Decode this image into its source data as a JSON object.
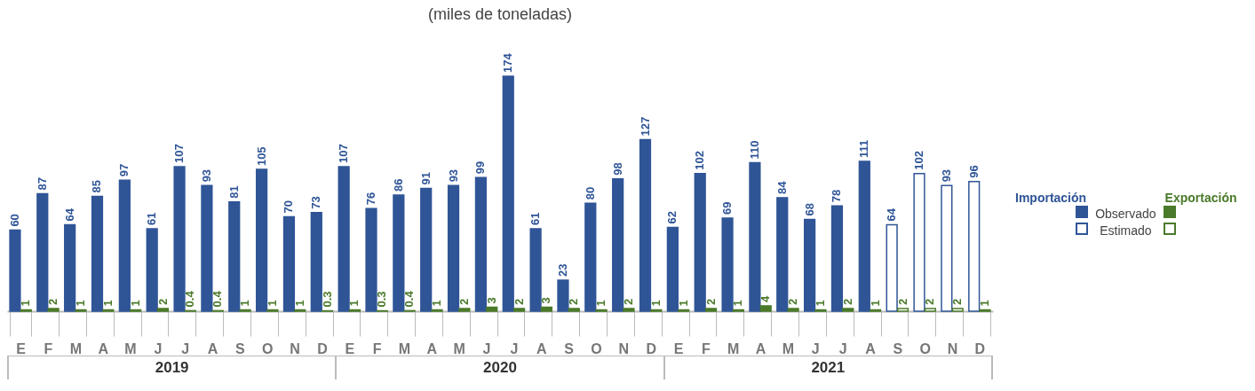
{
  "chart_data": {
    "type": "bar",
    "title": "(miles de toneladas)",
    "categories": [
      "E",
      "F",
      "M",
      "A",
      "M",
      "J",
      "J",
      "A",
      "S",
      "O",
      "N",
      "D",
      "E",
      "F",
      "M",
      "A",
      "M",
      "J",
      "J",
      "A",
      "S",
      "O",
      "N",
      "D",
      "E",
      "F",
      "M",
      "A",
      "M",
      "J",
      "J",
      "A",
      "S",
      "O",
      "N",
      "D"
    ],
    "series": [
      {
        "name": "Observado",
        "color": "#2f5597",
        "values": [
          60,
          87,
          64,
          85,
          97,
          61,
          107,
          93,
          81,
          105,
          70,
          73,
          107,
          76,
          86,
          91,
          93,
          99,
          174,
          61,
          23,
          80,
          98,
          127,
          62,
          102,
          69,
          110,
          84,
          68,
          78,
          111,
          null,
          null,
          null,
          null
        ]
      },
      {
        "name": "Estimado",
        "color": "#2f5597",
        "line_style": "solid",
        "values": [
          null,
          null,
          null,
          null,
          null,
          null,
          null,
          null,
          null,
          null,
          null,
          null,
          null,
          null,
          null,
          null,
          null,
          null,
          null,
          null,
          null,
          null,
          null,
          null,
          null,
          null,
          null,
          null,
          null,
          null,
          null,
          null,
          64,
          102,
          93,
          96
        ]
      },
      {
        "color": "#4a7a2a",
        "values": [
          1,
          2,
          1,
          1,
          1,
          2,
          0.4,
          0.4,
          1,
          1,
          1,
          0.3,
          1,
          0.3,
          0.4,
          1,
          2,
          3,
          2,
          3,
          2,
          1,
          2,
          1,
          1,
          2,
          1,
          4,
          2,
          1,
          2,
          1,
          null,
          null,
          null,
          null
        ]
      },
      {
        "color": "#4a7a2a",
        "line_style": "solid",
        "values": [
          null,
          null,
          null,
          null,
          null,
          null,
          null,
          null,
          null,
          null,
          null,
          null,
          null,
          null,
          null,
          null,
          null,
          null,
          null,
          null,
          null,
          null,
          null,
          null,
          null,
          null,
          null,
          null,
          null,
          null,
          null,
          null,
          2,
          2,
          2,
          1
        ]
      }
    ],
    "data_labels": true,
    "legend": "right",
    "grid": false,
    "annotations": [
      "Importación",
      "Exportación",
      "2019",
      "2020",
      "2021"
    ]
  }
}
